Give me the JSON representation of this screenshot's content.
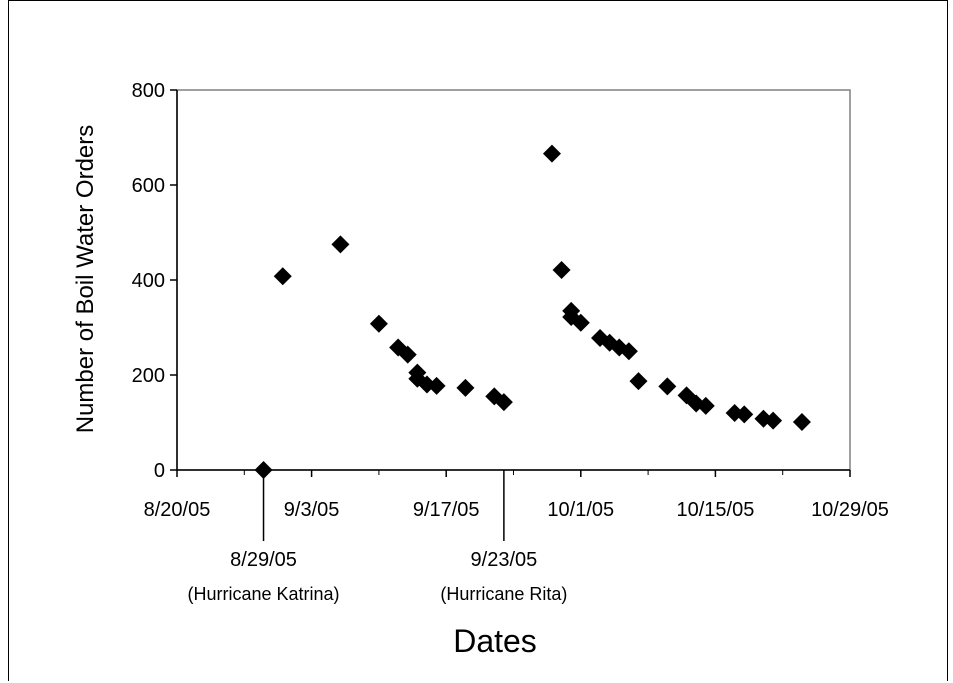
{
  "chart_data": {
    "type": "scatter",
    "title": "",
    "xlabel": "Dates",
    "ylabel": "Number of Boil Water Orders",
    "x_tick_labels": [
      "8/20/05",
      "9/3/05",
      "9/17/05",
      "10/1/05",
      "10/15/05",
      "10/29/05"
    ],
    "x_ticks": [
      "2005-08-20",
      "2005-09-03",
      "2005-09-17",
      "2005-10-01",
      "2005-10-15",
      "2005-10-29"
    ],
    "y_tick_labels": [
      "0",
      "200",
      "400",
      "600",
      "800"
    ],
    "xlim": [
      "2005-08-20",
      "2005-10-29"
    ],
    "ylim": [
      0,
      800
    ],
    "grid": false,
    "legend": "none",
    "marker": "diamond",
    "marker_color": "#000000",
    "points": [
      {
        "x": "2005-08-29",
        "y": 0
      },
      {
        "x": "2005-08-31",
        "y": 408
      },
      {
        "x": "2005-09-06",
        "y": 475
      },
      {
        "x": "2005-09-10",
        "y": 308
      },
      {
        "x": "2005-09-12",
        "y": 258
      },
      {
        "x": "2005-09-13",
        "y": 243
      },
      {
        "x": "2005-09-14",
        "y": 205
      },
      {
        "x": "2005-09-14",
        "y": 192
      },
      {
        "x": "2005-09-15",
        "y": 180
      },
      {
        "x": "2005-09-16",
        "y": 177
      },
      {
        "x": "2005-09-19",
        "y": 173
      },
      {
        "x": "2005-09-22",
        "y": 155
      },
      {
        "x": "2005-09-23",
        "y": 143
      },
      {
        "x": "2005-09-28",
        "y": 666
      },
      {
        "x": "2005-09-29",
        "y": 421
      },
      {
        "x": "2005-09-30",
        "y": 335
      },
      {
        "x": "2005-09-30",
        "y": 322
      },
      {
        "x": "2005-10-01",
        "y": 310
      },
      {
        "x": "2005-10-03",
        "y": 278
      },
      {
        "x": "2005-10-04",
        "y": 268
      },
      {
        "x": "2005-10-05",
        "y": 258
      },
      {
        "x": "2005-10-06",
        "y": 250
      },
      {
        "x": "2005-10-07",
        "y": 187
      },
      {
        "x": "2005-10-10",
        "y": 176
      },
      {
        "x": "2005-10-12",
        "y": 157
      },
      {
        "x": "2005-10-13",
        "y": 140
      },
      {
        "x": "2005-10-14",
        "y": 135
      },
      {
        "x": "2005-10-17",
        "y": 120
      },
      {
        "x": "2005-10-18",
        "y": 117
      },
      {
        "x": "2005-10-20",
        "y": 108
      },
      {
        "x": "2005-10-21",
        "y": 104
      },
      {
        "x": "2005-10-24",
        "y": 101
      }
    ],
    "annotations": [
      {
        "x": "2005-08-29",
        "date_label": "8/29/05",
        "event_label": "(Hurricane Katrina)"
      },
      {
        "x": "2005-09-23",
        "date_label": "9/23/05",
        "event_label": "(Hurricane Rita)"
      }
    ]
  }
}
